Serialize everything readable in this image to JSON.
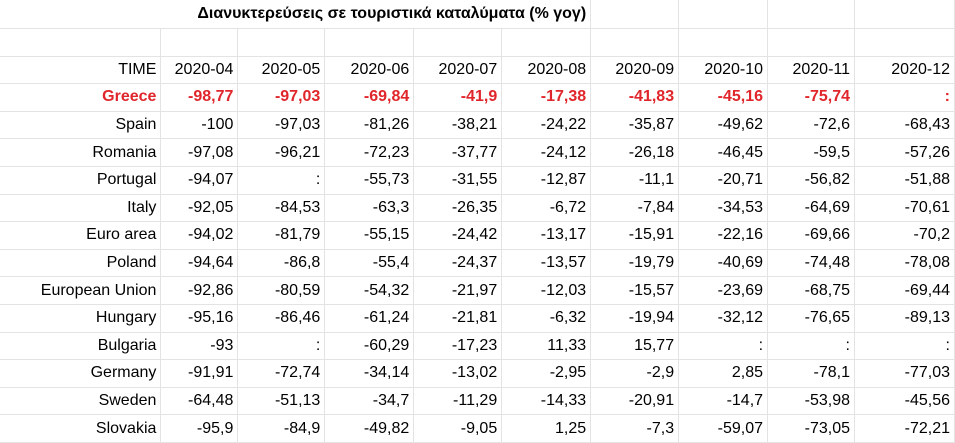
{
  "title": "Διανυκτερεύσεις σε τουριστικά καταλύματα (% γογ)",
  "header": {
    "label": "TIME",
    "periods": [
      "2020-04",
      "2020-05",
      "2020-06",
      "2020-07",
      "2020-08",
      "2020-09",
      "2020-10",
      "2020-11",
      "2020-12"
    ]
  },
  "rows": [
    {
      "country": "Greece",
      "highlight": true,
      "values": [
        "-98,77",
        "-97,03",
        "-69,84",
        "-41,9",
        "-17,38",
        "-41,83",
        "-45,16",
        "-75,74",
        ":"
      ]
    },
    {
      "country": "Spain",
      "highlight": false,
      "values": [
        "-100",
        "-97,03",
        "-81,26",
        "-38,21",
        "-24,22",
        "-35,87",
        "-49,62",
        "-72,6",
        "-68,43"
      ]
    },
    {
      "country": "Romania",
      "highlight": false,
      "values": [
        "-97,08",
        "-96,21",
        "-72,23",
        "-37,77",
        "-24,12",
        "-26,18",
        "-46,45",
        "-59,5",
        "-57,26"
      ]
    },
    {
      "country": "Portugal",
      "highlight": false,
      "values": [
        "-94,07",
        ":",
        "-55,73",
        "-31,55",
        "-12,87",
        "-11,1",
        "-20,71",
        "-56,82",
        "-51,88"
      ]
    },
    {
      "country": "Italy",
      "highlight": false,
      "values": [
        "-92,05",
        "-84,53",
        "-63,3",
        "-26,35",
        "-6,72",
        "-7,84",
        "-34,53",
        "-64,69",
        "-70,61"
      ]
    },
    {
      "country": "Euro area",
      "highlight": false,
      "values": [
        "-94,02",
        "-81,79",
        "-55,15",
        "-24,42",
        "-13,17",
        "-15,91",
        "-22,16",
        "-69,66",
        "-70,2"
      ]
    },
    {
      "country": "Poland",
      "highlight": false,
      "values": [
        "-94,64",
        "-86,8",
        "-55,4",
        "-24,37",
        "-13,57",
        "-19,79",
        "-40,69",
        "-74,48",
        "-78,08"
      ]
    },
    {
      "country": "European Union",
      "highlight": false,
      "values": [
        "-92,86",
        "-80,59",
        "-54,32",
        "-21,97",
        "-12,03",
        "-15,57",
        "-23,69",
        "-68,75",
        "-69,44"
      ]
    },
    {
      "country": "Hungary",
      "highlight": false,
      "values": [
        "-95,16",
        "-86,46",
        "-61,24",
        "-21,81",
        "-6,32",
        "-19,94",
        "-32,12",
        "-76,65",
        "-89,13"
      ]
    },
    {
      "country": "Bulgaria",
      "highlight": false,
      "values": [
        "-93",
        ":",
        "-60,29",
        "-17,23",
        "11,33",
        "15,77",
        ":",
        ":",
        ":"
      ]
    },
    {
      "country": "Germany",
      "highlight": false,
      "values": [
        "-91,91",
        "-72,74",
        "-34,14",
        "-13,02",
        "-2,95",
        "-2,9",
        "2,85",
        "-78,1",
        "-77,03"
      ]
    },
    {
      "country": "Sweden",
      "highlight": false,
      "values": [
        "-64,48",
        "-51,13",
        "-34,7",
        "-11,29",
        "-14,33",
        "-20,91",
        "-14,7",
        "-53,98",
        "-45,56"
      ]
    },
    {
      "country": "Slovakia",
      "highlight": false,
      "values": [
        "-95,9",
        "-84,9",
        "-49,82",
        "-9,05",
        "1,25",
        "-7,3",
        "-59,07",
        "-73,05",
        "-72,21"
      ]
    }
  ]
}
